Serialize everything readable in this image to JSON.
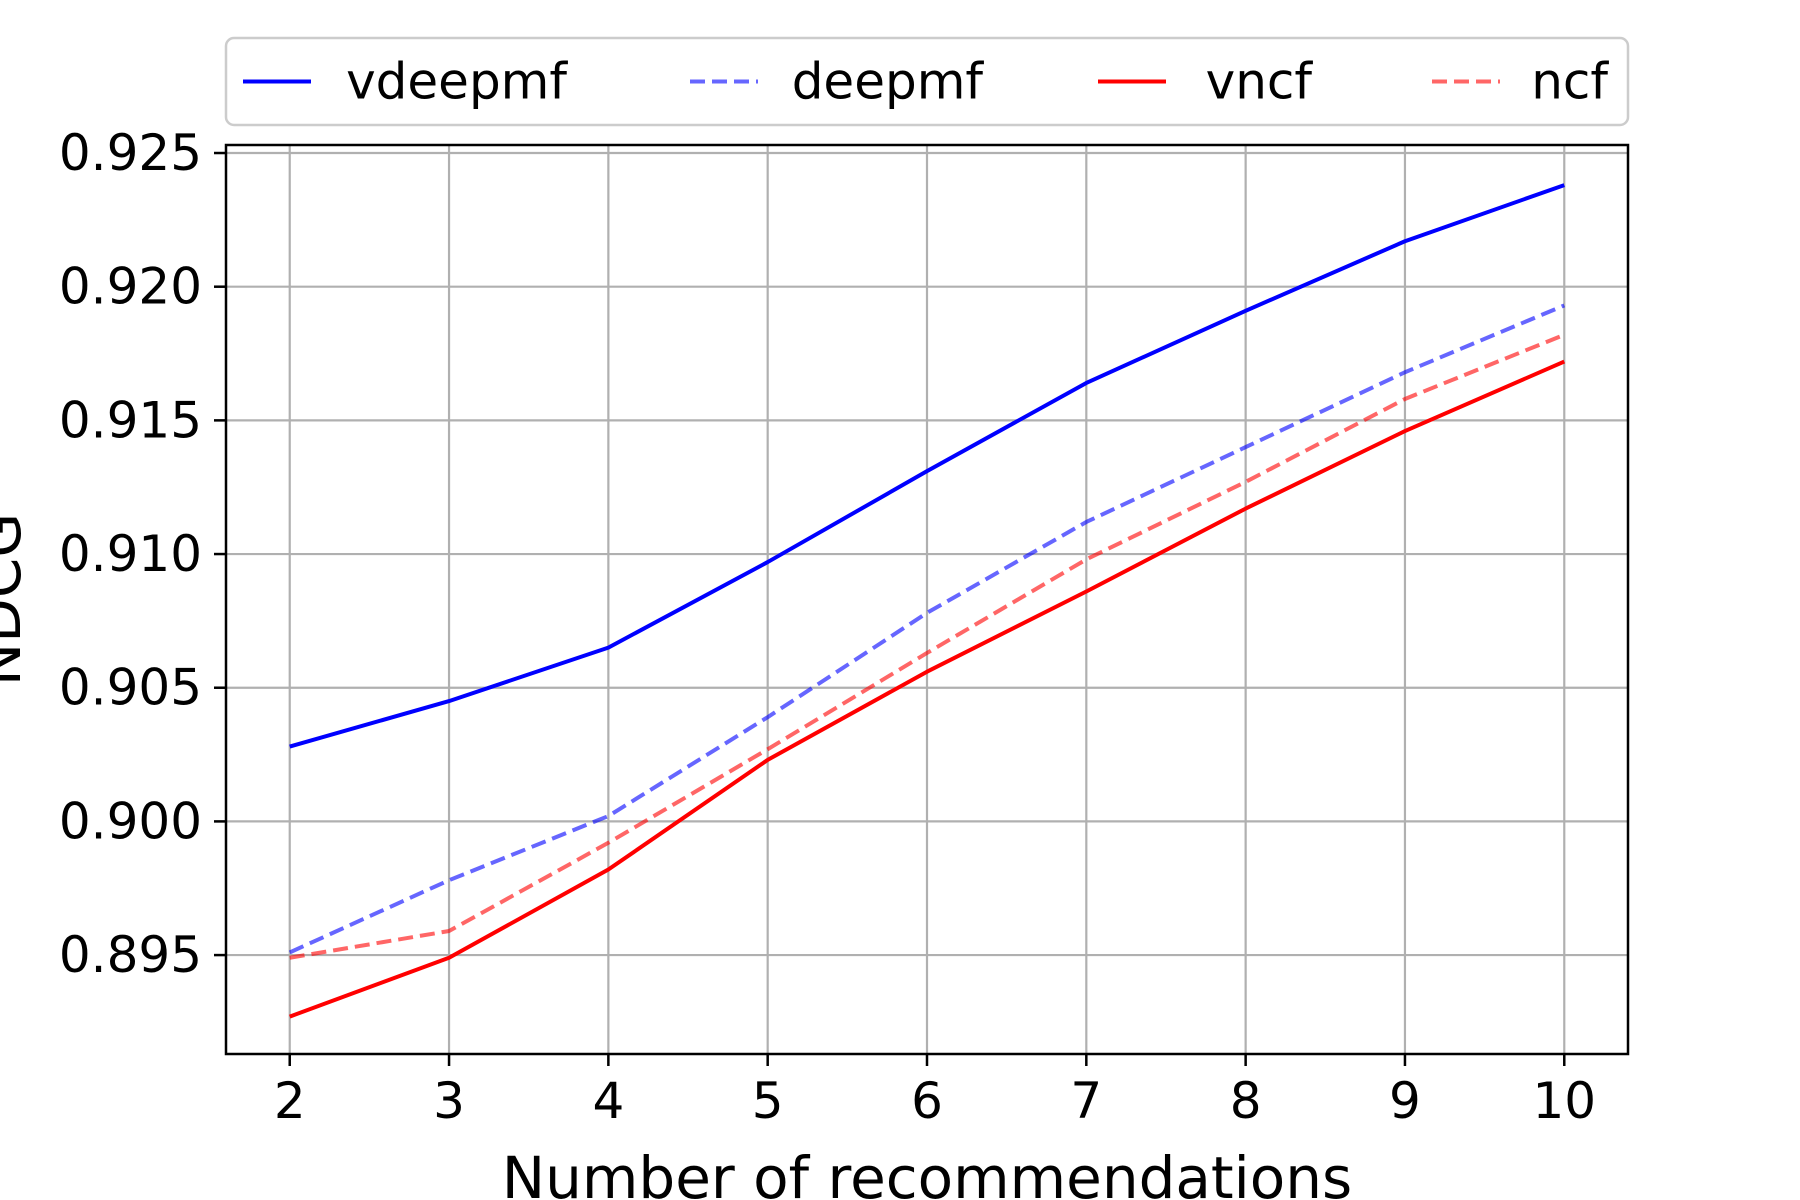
{
  "chart_data": {
    "type": "line",
    "title": "",
    "xlabel": "Number of recommendations",
    "ylabel": "NDCG",
    "x": [
      2,
      3,
      4,
      5,
      6,
      7,
      8,
      9,
      10
    ],
    "xlim": [
      1.6,
      10.4
    ],
    "ylim": [
      0.8913,
      0.9253
    ],
    "x_ticks": [
      2,
      3,
      4,
      5,
      6,
      7,
      8,
      9,
      10
    ],
    "y_ticks": [
      0.895,
      0.9,
      0.905,
      0.91,
      0.915,
      0.92,
      0.925
    ],
    "y_tick_labels": [
      "0.895",
      "0.900",
      "0.905",
      "0.910",
      "0.915",
      "0.920",
      "0.925"
    ],
    "grid": true,
    "legend_position": "top",
    "series": [
      {
        "name": "vdeepmf",
        "color": "#0000ff",
        "dashed": false,
        "opacity": 1,
        "values": [
          0.9028,
          0.9045,
          0.9065,
          0.9097,
          0.9131,
          0.9164,
          0.9191,
          0.9217,
          0.9238
        ]
      },
      {
        "name": "deepmf",
        "color": "#0000ff",
        "dashed": true,
        "opacity": 0.6,
        "values": [
          0.8951,
          0.8978,
          0.9002,
          0.9039,
          0.9078,
          0.9112,
          0.914,
          0.9168,
          0.9193
        ]
      },
      {
        "name": "vncf",
        "color": "#ff0000",
        "dashed": false,
        "opacity": 1,
        "values": [
          0.8927,
          0.8949,
          0.8982,
          0.9023,
          0.9056,
          0.9086,
          0.9117,
          0.9146,
          0.9172
        ]
      },
      {
        "name": "ncf",
        "color": "#ff0000",
        "dashed": true,
        "opacity": 0.6,
        "values": [
          0.8949,
          0.8959,
          0.8992,
          0.9027,
          0.9063,
          0.9098,
          0.9127,
          0.9158,
          0.9182
        ]
      }
    ]
  }
}
